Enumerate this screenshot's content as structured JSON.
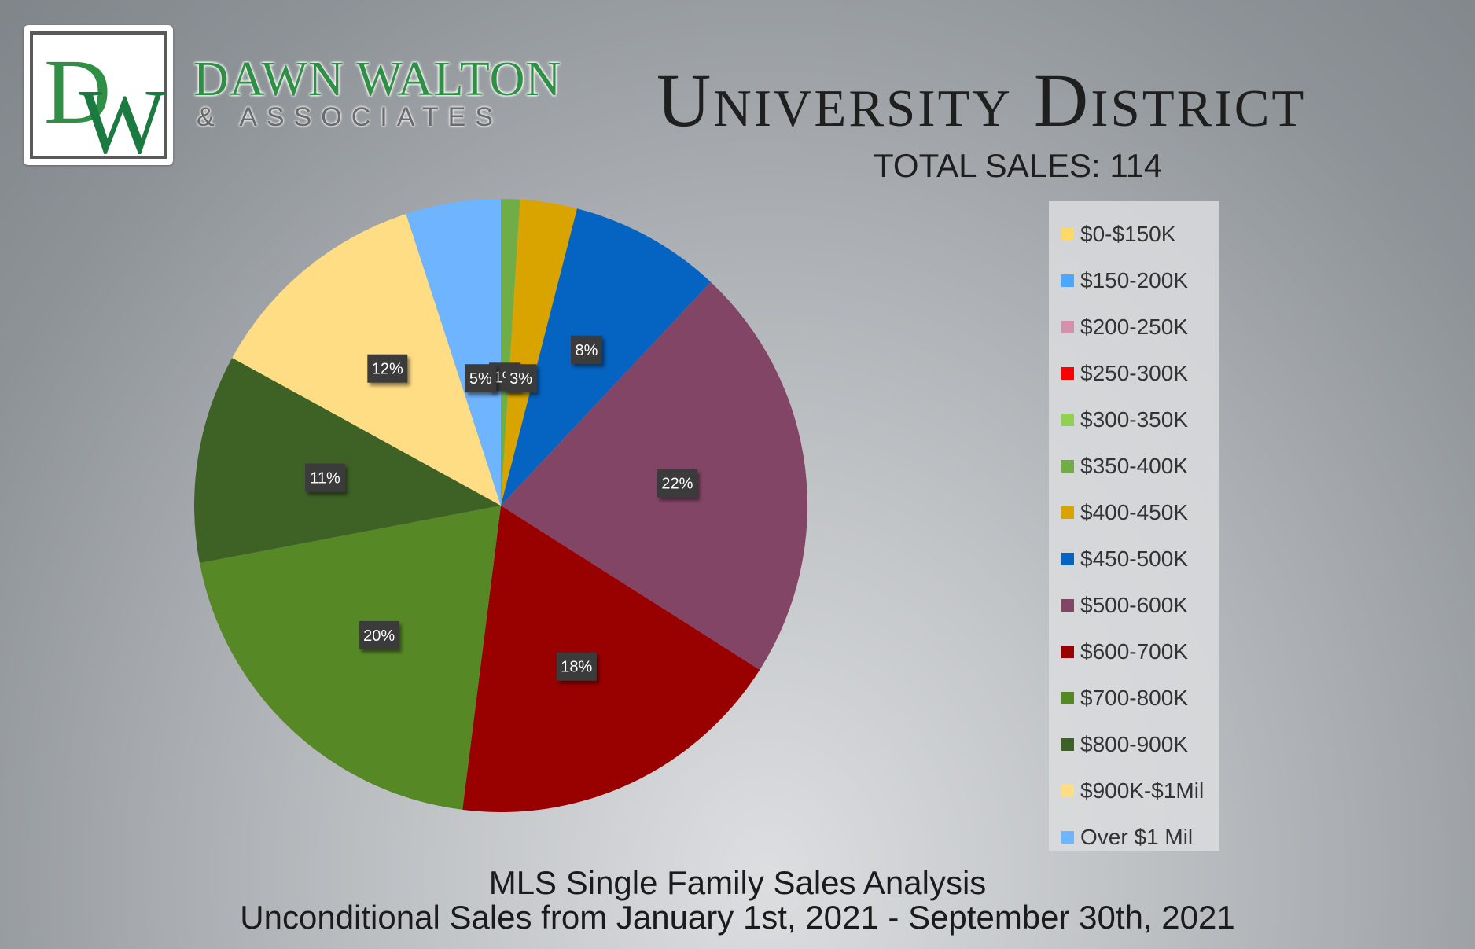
{
  "brand": {
    "monogram_d": "D",
    "monogram_w": "W",
    "name": "DAWN WALTON",
    "subtitle": "& ASSOCIATES"
  },
  "header": {
    "title": "University District",
    "total_sales": "TOTAL SALES: 114"
  },
  "footer": {
    "line1": "MLS Single Family Sales Analysis",
    "line2": "Unconditional Sales from January 1st, 2021 - September 30th, 2021"
  },
  "chart_data": {
    "type": "pie",
    "legend_position": "right",
    "slices": [
      {
        "label": "$0-$150K",
        "value": 0,
        "data_label": "",
        "color": "#ffd966"
      },
      {
        "label": "$150-200K",
        "value": 0,
        "data_label": "",
        "color": "#4da6ff"
      },
      {
        "label": "$200-250K",
        "value": 0,
        "data_label": "",
        "color": "#d291ad"
      },
      {
        "label": "$250-300K",
        "value": 0,
        "data_label": "",
        "color": "#ff0000"
      },
      {
        "label": "$300-350K",
        "value": 0,
        "data_label": "",
        "color": "#92d050"
      },
      {
        "label": "$350-400K",
        "value": 1,
        "data_label": "1%",
        "color": "#70ad47"
      },
      {
        "label": "$400-450K",
        "value": 3,
        "data_label": "3%",
        "color": "#d9a300"
      },
      {
        "label": "$450-500K",
        "value": 8,
        "data_label": "8%",
        "color": "#0563c1"
      },
      {
        "label": "$500-600K",
        "value": 22,
        "data_label": "22%",
        "color": "#824565"
      },
      {
        "label": "$600-700K",
        "value": 18,
        "data_label": "18%",
        "color": "#990000"
      },
      {
        "label": "$700-800K",
        "value": 20,
        "data_label": "20%",
        "color": "#578826"
      },
      {
        "label": "$800-900K",
        "value": 11,
        "data_label": "11%",
        "color": "#3e6126"
      },
      {
        "label": "$900K-$1Mil",
        "value": 12,
        "data_label": "12%",
        "color": "#ffdd85"
      },
      {
        "label": "Over $1 Mil",
        "value": 5,
        "data_label": "5%",
        "color": "#6eb4ff"
      }
    ]
  }
}
